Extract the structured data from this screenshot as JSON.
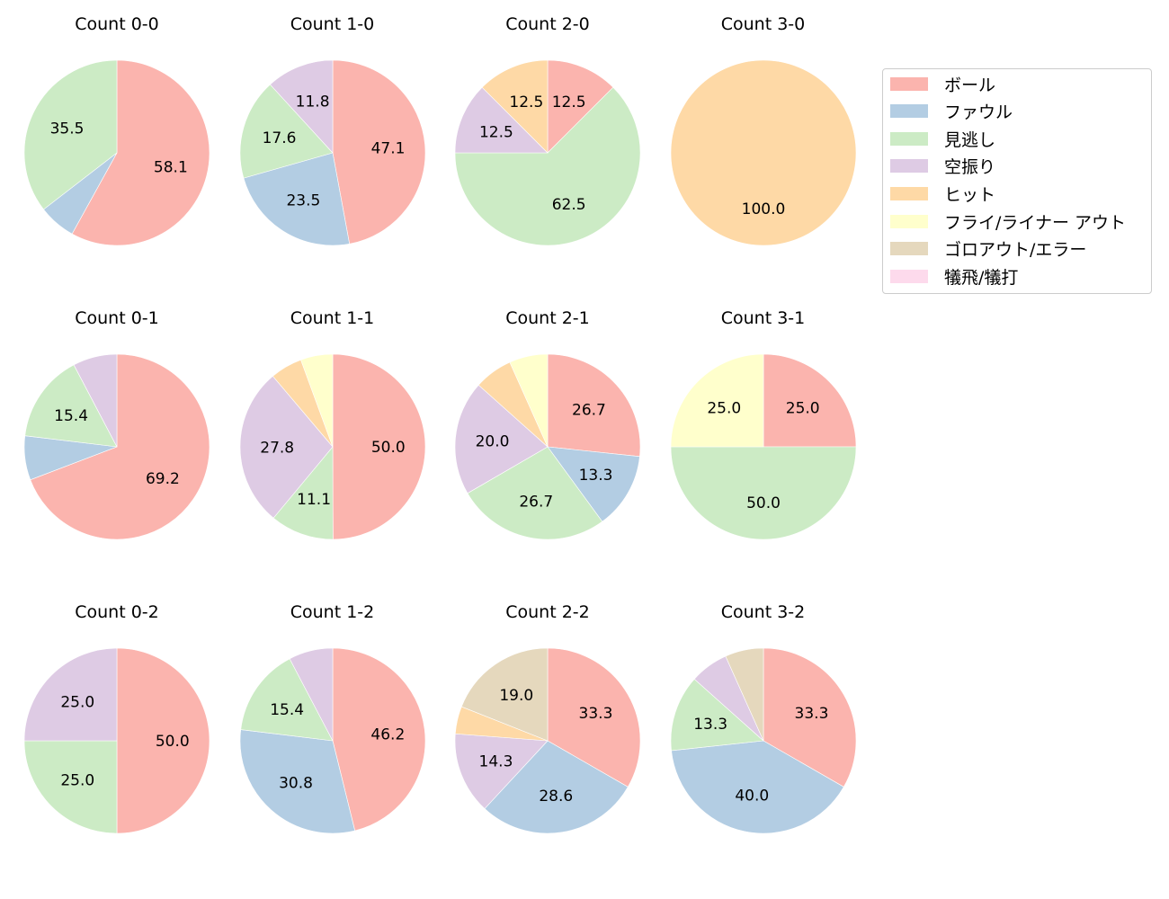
{
  "legend": {
    "items": [
      {
        "label": "ボール",
        "color": "#fbb4ae"
      },
      {
        "label": "ファウル",
        "color": "#b3cde3"
      },
      {
        "label": "見逃し",
        "color": "#ccebc5"
      },
      {
        "label": "空振り",
        "color": "#decbe4"
      },
      {
        "label": "ヒット",
        "color": "#fed9a6"
      },
      {
        "label": "フライ/ライナー アウト",
        "color": "#ffffcc"
      },
      {
        "label": "ゴロアウト/エラー",
        "color": "#e5d8bd"
      },
      {
        "label": "犠飛/犠打",
        "color": "#fddaec"
      }
    ]
  },
  "chart_data": [
    {
      "type": "pie",
      "title": "Count 0-0",
      "labels": [
        "ボール",
        "ファウル",
        "見逃し"
      ],
      "values": [
        58.1,
        6.5,
        35.5
      ],
      "shown_labels": [
        "58.1",
        "",
        "35.5"
      ]
    },
    {
      "type": "pie",
      "title": "Count 1-0",
      "labels": [
        "ボール",
        "ファウル",
        "見逃し",
        "空振り"
      ],
      "values": [
        47.1,
        23.5,
        17.6,
        11.8
      ],
      "shown_labels": [
        "47.1",
        "23.5",
        "17.6",
        "11.8"
      ]
    },
    {
      "type": "pie",
      "title": "Count 2-0",
      "labels": [
        "ボール",
        "見逃し",
        "空振り",
        "ヒット"
      ],
      "values": [
        12.5,
        62.5,
        12.5,
        12.5
      ],
      "shown_labels": [
        "12.5",
        "62.5",
        "12.5",
        "12.5"
      ]
    },
    {
      "type": "pie",
      "title": "Count 3-0",
      "labels": [
        "ヒット"
      ],
      "values": [
        100.0
      ],
      "shown_labels": [
        "100.0"
      ]
    },
    {
      "type": "pie",
      "title": "Count 0-1",
      "labels": [
        "ボール",
        "ファウル",
        "見逃し",
        "空振り"
      ],
      "values": [
        69.2,
        7.7,
        15.4,
        7.7
      ],
      "shown_labels": [
        "69.2",
        "",
        "15.4",
        ""
      ]
    },
    {
      "type": "pie",
      "title": "Count 1-1",
      "labels": [
        "ボール",
        "見逃し",
        "空振り",
        "ヒット",
        "フライ/ライナー アウト"
      ],
      "values": [
        50.0,
        11.1,
        27.8,
        5.6,
        5.6
      ],
      "shown_labels": [
        "50.0",
        "11.1",
        "27.8",
        "",
        ""
      ]
    },
    {
      "type": "pie",
      "title": "Count 2-1",
      "labels": [
        "ボール",
        "ファウル",
        "見逃し",
        "空振り",
        "ヒット",
        "フライ/ライナー アウト"
      ],
      "values": [
        26.7,
        13.3,
        26.7,
        20.0,
        6.7,
        6.7
      ],
      "shown_labels": [
        "26.7",
        "13.3",
        "26.7",
        "20.0",
        "",
        ""
      ]
    },
    {
      "type": "pie",
      "title": "Count 3-1",
      "labels": [
        "ボール",
        "見逃し",
        "フライ/ライナー アウト"
      ],
      "values": [
        25.0,
        50.0,
        25.0
      ],
      "shown_labels": [
        "25.0",
        "50.0",
        "25.0"
      ]
    },
    {
      "type": "pie",
      "title": "Count 0-2",
      "labels": [
        "ボール",
        "見逃し",
        "空振り"
      ],
      "values": [
        50.0,
        25.0,
        25.0
      ],
      "shown_labels": [
        "50.0",
        "25.0",
        "25.0"
      ]
    },
    {
      "type": "pie",
      "title": "Count 1-2",
      "labels": [
        "ボール",
        "ファウル",
        "見逃し",
        "空振り"
      ],
      "values": [
        46.2,
        30.8,
        15.4,
        7.7
      ],
      "shown_labels": [
        "46.2",
        "30.8",
        "15.4",
        ""
      ]
    },
    {
      "type": "pie",
      "title": "Count 2-2",
      "labels": [
        "ボール",
        "ファウル",
        "空振り",
        "ヒット",
        "ゴロアウト/エラー"
      ],
      "values": [
        33.3,
        28.6,
        14.3,
        4.8,
        19.0
      ],
      "shown_labels": [
        "33.3",
        "28.6",
        "14.3",
        "",
        "19.0"
      ]
    },
    {
      "type": "pie",
      "title": "Count 3-2",
      "labels": [
        "ボール",
        "ファウル",
        "見逃し",
        "空振り",
        "ゴロアウト/エラー"
      ],
      "values": [
        33.3,
        40.0,
        13.3,
        6.7,
        6.7
      ],
      "shown_labels": [
        "33.3",
        "40.0",
        "13.3",
        "",
        ""
      ]
    }
  ]
}
